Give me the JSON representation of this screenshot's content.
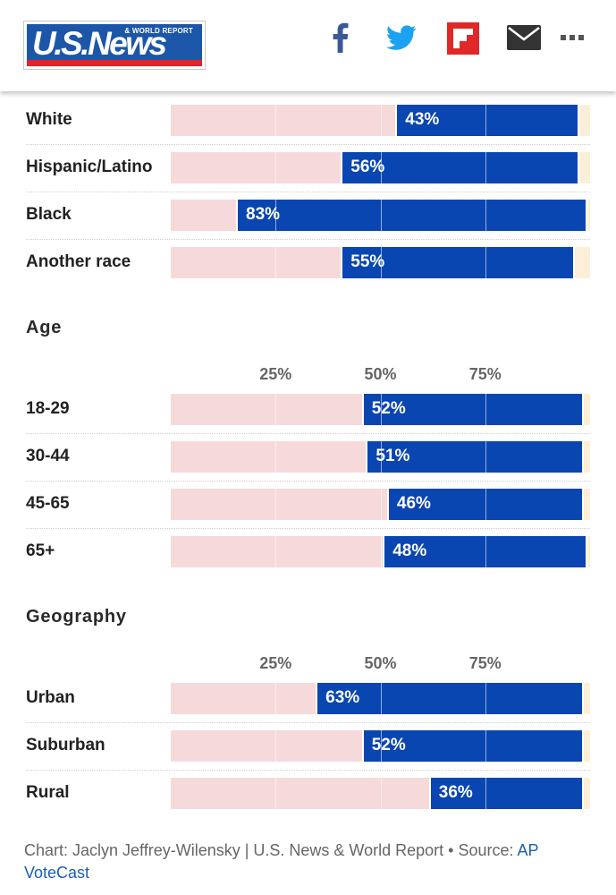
{
  "brand": {
    "logo_text": "U.S.News",
    "logo_subtext": "& WORLD REPORT",
    "colors": {
      "navy": "#1c56a8",
      "red": "#e1242b"
    }
  },
  "share": [
    {
      "icon": "facebook-icon",
      "color": "#3b5998"
    },
    {
      "icon": "twitter-icon",
      "color": "#1da1f2"
    },
    {
      "icon": "flipboard-icon",
      "color": "#e12828"
    },
    {
      "icon": "mail-icon",
      "color": "#333333"
    },
    {
      "icon": "more-icon",
      "color": "#555555"
    }
  ],
  "chart_data": {
    "type": "bar",
    "stacked": true,
    "orientation": "horizontal",
    "ticks": [
      "25%",
      "50%",
      "75%"
    ],
    "xlim": [
      0,
      100
    ],
    "colors": {
      "left": "#f6dadb",
      "right": "#0a46b1",
      "remainder": "#fcefd8"
    },
    "sections": [
      {
        "title": "",
        "show_ticks": false,
        "categories": [
          "White",
          "Hispanic/Latino",
          "Black",
          "Another race"
        ],
        "values": [
          43,
          56,
          83,
          55
        ],
        "left_values": [
          54,
          41,
          16,
          41
        ],
        "labels": [
          "43%",
          "56%",
          "83%",
          "55%"
        ]
      },
      {
        "title": "Age",
        "show_ticks": true,
        "categories": [
          "18-29",
          "30-44",
          "45-65",
          "65+"
        ],
        "values": [
          52,
          51,
          46,
          48
        ],
        "left_values": [
          46,
          47,
          52,
          51
        ],
        "labels": [
          "52%",
          "51%",
          "46%",
          "48%"
        ]
      },
      {
        "title": "Geography",
        "show_ticks": true,
        "categories": [
          "Urban",
          "Suburban",
          "Rural"
        ],
        "values": [
          63,
          52,
          36
        ],
        "left_values": [
          35,
          46,
          62
        ],
        "labels": [
          "63%",
          "52%",
          "36%"
        ]
      }
    ]
  },
  "caption": {
    "text": "Chart: Jaclyn Jeffrey-Wilensky | U.S. News & World Report • Source: ",
    "link": "AP VoteCast"
  }
}
